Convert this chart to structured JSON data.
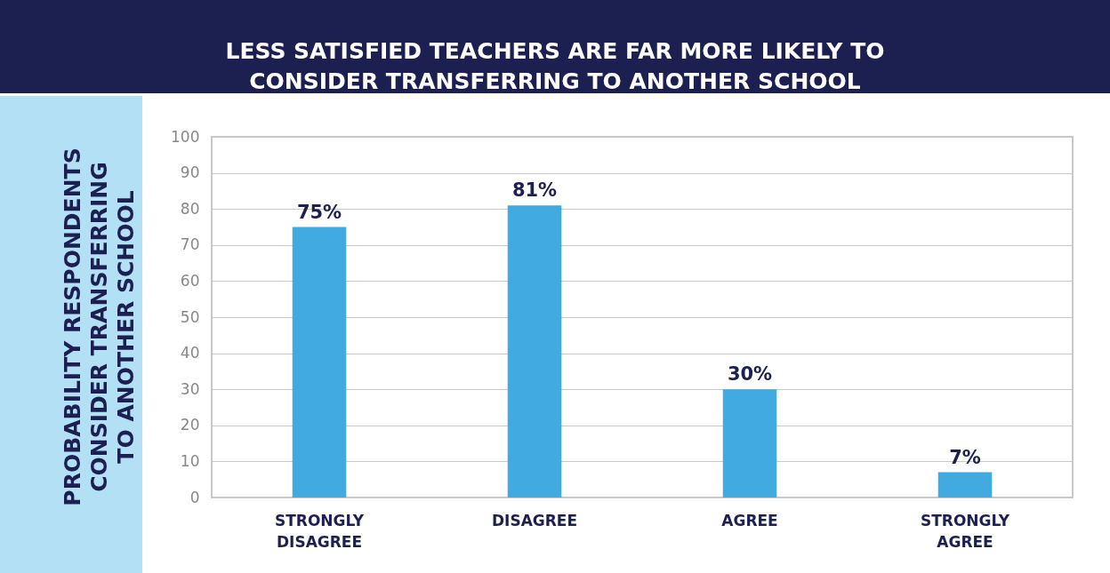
{
  "chart_data": {
    "type": "bar",
    "title": "LESS SATISFIED TEACHERS ARE FAR MORE LIKELY TO\nCONSIDER TRANSFERRING TO ANOTHER SCHOOL",
    "ylabel": "PROBABILITY RESPONDENTS\nCONSIDER TRANSFERRING\nTO ANOTHER SCHOOL",
    "categories": [
      "STRONGLY\nDISAGREE",
      "DISAGREE",
      "AGREE",
      "STRONGLY\nAGREE"
    ],
    "values": [
      75,
      81,
      30,
      7
    ],
    "value_labels": [
      "75%",
      "81%",
      "30%",
      "7%"
    ],
    "color": "#41aae0",
    "ylim": [
      0,
      100
    ],
    "yticks": [
      0,
      10,
      20,
      30,
      40,
      50,
      60,
      70,
      80,
      90,
      100
    ],
    "grid": true
  }
}
